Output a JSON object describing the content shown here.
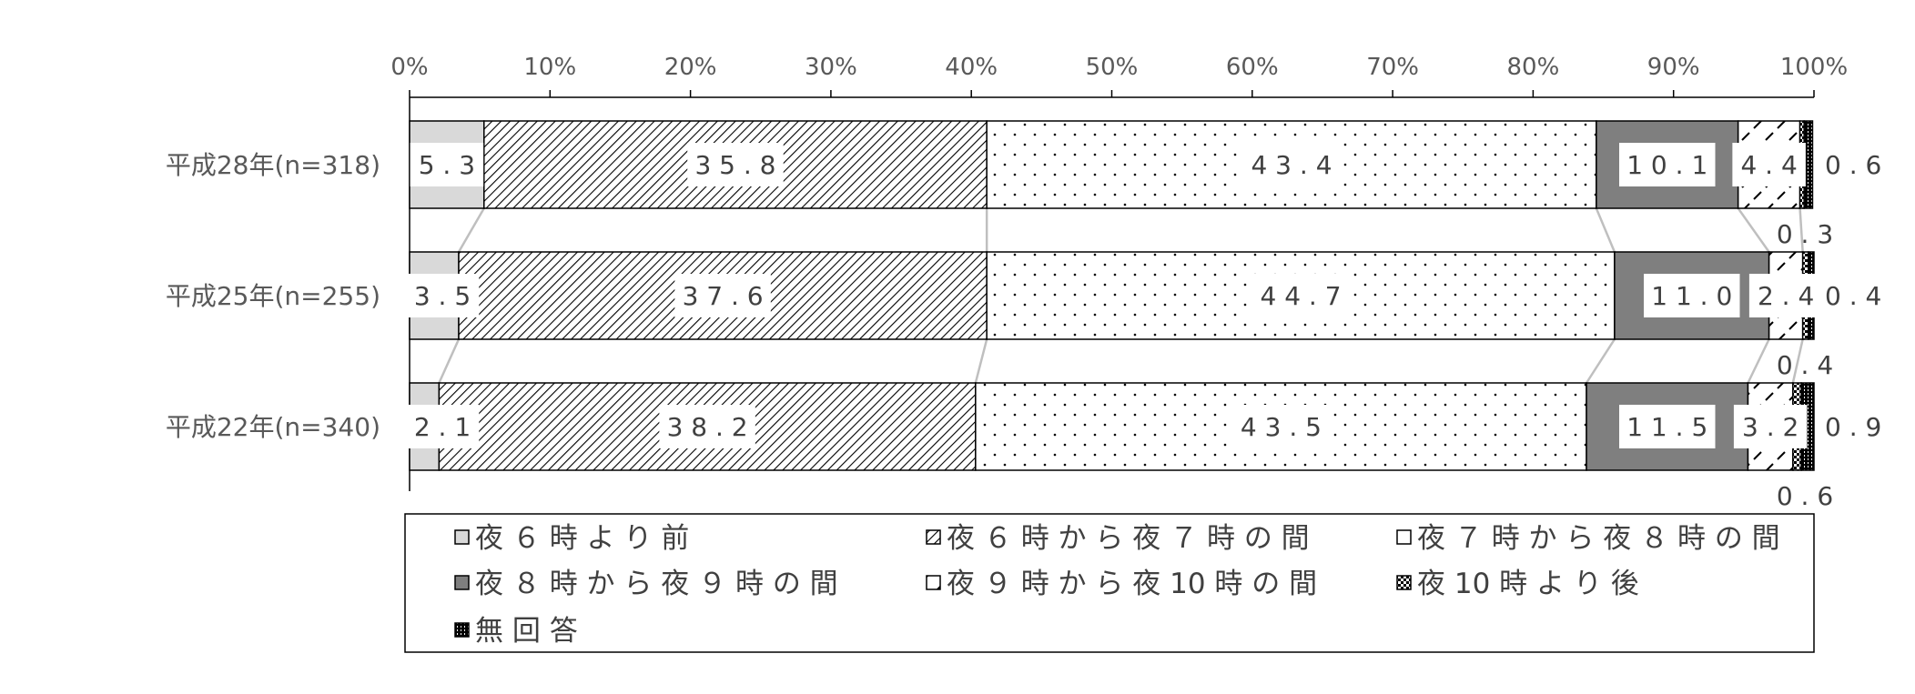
{
  "chart_data": {
    "type": "bar",
    "orientation": "horizontal",
    "stacked": "percent",
    "categories": [
      "平成28年(n=318)",
      "平成25年(n=255)",
      "平成22年(n=340)"
    ],
    "series": [
      {
        "name": "夜６時より前",
        "values": [
          5.3,
          3.5,
          2.1
        ],
        "labels": [
          "5.3",
          "3.5",
          "2.1"
        ]
      },
      {
        "name": "夜６時から夜７時の間",
        "values": [
          35.8,
          37.6,
          38.2
        ],
        "labels": [
          "35.8",
          "37.6",
          "38.2"
        ]
      },
      {
        "name": "夜７時から夜８時の間",
        "values": [
          43.4,
          44.7,
          43.5
        ],
        "labels": [
          "43.4",
          "44.7",
          "43.5"
        ]
      },
      {
        "name": "夜８時から夜９時の間",
        "values": [
          10.1,
          11.0,
          11.5
        ],
        "labels": [
          "10.1",
          "11.0",
          "11.5"
        ]
      },
      {
        "name": "夜９時から夜10時の間",
        "values": [
          4.4,
          2.4,
          3.2
        ],
        "labels": [
          "4.4",
          "2.4",
          "3.2"
        ]
      },
      {
        "name": "夜10時より後",
        "values": [
          0.3,
          0.4,
          0.6
        ],
        "labels": [
          "0.3",
          "0.4",
          "0.6"
        ]
      },
      {
        "name": "無回答",
        "values": [
          0.6,
          0.4,
          0.9
        ],
        "labels": [
          "0.6",
          "0.4",
          "0.9"
        ]
      }
    ],
    "xticks": [
      "0%",
      "10%",
      "20%",
      "30%",
      "40%",
      "50%",
      "60%",
      "70%",
      "80%",
      "90%",
      "100%"
    ],
    "xlim": [
      0,
      100
    ],
    "xaxis_position": "top",
    "grid": false,
    "legend": "bottom",
    "series_lines": true,
    "colors": {
      "before6": "#d9d9d9",
      "h8to9": "#7f7f7f",
      "outline": "#000000",
      "connector": "#bfbfbf",
      "text": "#404040",
      "axis_text": "#595959"
    }
  }
}
